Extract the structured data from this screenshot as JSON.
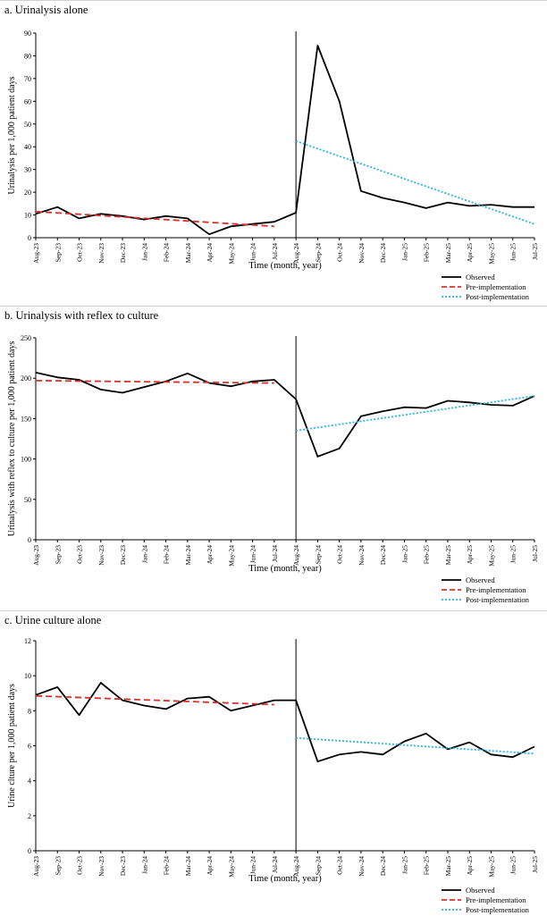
{
  "chart_data": [
    {
      "type": "line",
      "title": "a. Urinalysis alone",
      "xlabel": "Time (month, year)",
      "ylabel": "Urinalysis per 1,000 patient days",
      "ylim": [
        0,
        90
      ],
      "yticks": [
        0,
        10,
        20,
        30,
        40,
        50,
        60,
        70,
        80,
        90
      ],
      "categories": [
        "Aug-23",
        "Sep-23",
        "Oct-23",
        "Nov-23",
        "Dec-23",
        "Jan-24",
        "Feb-24",
        "Mar-24",
        "Apr-24",
        "May-24",
        "Jun-24",
        "Jul-24",
        "Aug-24",
        "Sep-24",
        "Oct-24",
        "Nov-24",
        "Dec-24",
        "Jan-25",
        "Feb-25",
        "Mar-25",
        "Apr-25",
        "May-25",
        "Jun-25",
        "Jul-25"
      ],
      "intervention_at": "Aug-24",
      "legend_position": "bottom-right",
      "series": [
        {
          "name": "Observed",
          "color": "#000000",
          "style": "solid",
          "values": [
            10.5,
            13.5,
            8.5,
            10.5,
            9.5,
            8,
            9.5,
            8.5,
            1.5,
            5,
            6,
            7,
            11,
            84.5,
            60,
            20.5,
            17.5,
            15.5,
            13,
            15.5,
            14,
            14.5,
            13.5,
            13.5
          ]
        },
        {
          "name": "Pre-implementation",
          "color": "#d9302b",
          "style": "dashed",
          "start": "Aug-23",
          "end": "Jul-24",
          "from_value": 11.5,
          "to_value": 5
        },
        {
          "name": "Post-implementation",
          "color": "#2fb3e6",
          "style": "dotted",
          "start": "Aug-24",
          "end": "Jul-25",
          "from_value": 42.5,
          "to_value": 6
        }
      ]
    },
    {
      "type": "line",
      "title": "b. Urinalysis with reflex to culture",
      "xlabel": "Time (month, year)",
      "ylabel": "Urinalysis with reflex to culture per 1,000 patient days",
      "ylim": [
        0,
        250
      ],
      "yticks": [
        0,
        50,
        100,
        150,
        200,
        250
      ],
      "categories": [
        "Aug-23",
        "Sep-23",
        "Oct-23",
        "Nov-23",
        "Dec-23",
        "Jan-24",
        "Feb-24",
        "Mar-24",
        "Apr-24",
        "May-24",
        "Jun-24",
        "Jul-24",
        "Aug-24",
        "Sep-24",
        "Oct-24",
        "Nov-24",
        "Dec-24",
        "Jan-25",
        "Feb-25",
        "Mar-25",
        "Apr-25",
        "May-25",
        "Jun-25",
        "Jul-25"
      ],
      "intervention_at": "Aug-24",
      "legend_position": "bottom-right",
      "series": [
        {
          "name": "Observed",
          "color": "#000000",
          "style": "solid",
          "values": [
            207,
            201,
            198,
            186,
            182,
            189,
            196,
            206,
            194,
            190,
            196,
            198,
            174,
            103,
            113,
            153,
            159,
            164,
            163,
            172,
            170,
            167,
            166,
            178
          ]
        },
        {
          "name": "Pre-implementation",
          "color": "#d9302b",
          "style": "dashed",
          "start": "Aug-23",
          "end": "Jul-24",
          "from_value": 197,
          "to_value": 194
        },
        {
          "name": "Post-implementation",
          "color": "#2fb3e6",
          "style": "dotted",
          "start": "Aug-24",
          "end": "Jul-25",
          "from_value": 135,
          "to_value": 178
        }
      ]
    },
    {
      "type": "line",
      "title": "c. Urine culture alone",
      "xlabel": "Time (month, year)",
      "ylabel": "Urine clture per 1,000 patient days",
      "ylim": [
        0,
        12
      ],
      "yticks": [
        0,
        2,
        4,
        6,
        8,
        10,
        12
      ],
      "categories": [
        "Aug-23",
        "Sep-23",
        "Oct-23",
        "Nov-23",
        "Dec-23",
        "Jan-24",
        "Feb-24",
        "Mar-24",
        "Apr-24",
        "May-24",
        "Jun-24",
        "Jul-24",
        "Aug-24",
        "Sep-24",
        "Oct-24",
        "Nov-24",
        "Dec-24",
        "Jan-25",
        "Feb-25",
        "Mar-25",
        "Apr-25",
        "May-25",
        "Jun-25",
        "Jul-25"
      ],
      "intervention_at": "Aug-24",
      "legend_position": "bottom-right",
      "series": [
        {
          "name": "Observed",
          "color": "#000000",
          "style": "solid",
          "values": [
            8.9,
            9.35,
            7.75,
            9.6,
            8.6,
            8.3,
            8.1,
            8.7,
            8.8,
            8.0,
            8.3,
            8.6,
            8.6,
            5.1,
            5.5,
            5.65,
            5.5,
            6.25,
            6.7,
            5.8,
            6.2,
            5.5,
            5.35,
            5.95
          ]
        },
        {
          "name": "Pre-implementation",
          "color": "#d9302b",
          "style": "dashed",
          "start": "Aug-23",
          "end": "Jul-24",
          "from_value": 8.85,
          "to_value": 8.35
        },
        {
          "name": "Post-implementation",
          "color": "#2fb3e6",
          "style": "dotted",
          "start": "Aug-24",
          "end": "Jul-25",
          "from_value": 6.45,
          "to_value": 5.55
        }
      ]
    }
  ]
}
